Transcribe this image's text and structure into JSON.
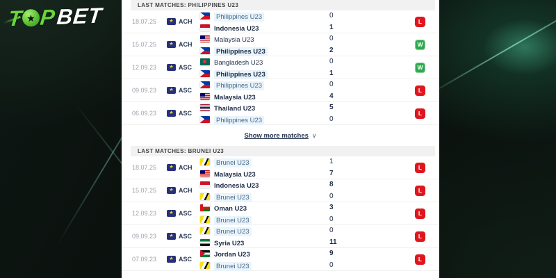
{
  "logo": {
    "t": "T",
    "star_glyph": "★",
    "p": "P",
    "bet": "BET"
  },
  "panel": {
    "sections": [
      {
        "header": "LAST MATCHES: PHILIPPINES U23",
        "show_more_label": "Show more matches",
        "chevron_glyph": "∨",
        "rows": [
          {
            "date": "18.07.25",
            "comp": "ACH",
            "comp_icon": "★",
            "home": {
              "name": "Philippines U23",
              "flag": "ph",
              "score": "0",
              "highlight": true,
              "bold": false
            },
            "away": {
              "name": "Indonesia U23",
              "flag": "id",
              "score": "1",
              "highlight": false,
              "bold": true
            },
            "result": "L"
          },
          {
            "date": "15.07.25",
            "comp": "ACH",
            "comp_icon": "★",
            "home": {
              "name": "Malaysia U23",
              "flag": "my",
              "score": "0",
              "highlight": false,
              "bold": false
            },
            "away": {
              "name": "Philippines U23",
              "flag": "ph",
              "score": "2",
              "highlight": true,
              "bold": true
            },
            "result": "W"
          },
          {
            "date": "12.09.23",
            "comp": "ASC",
            "comp_icon": "★",
            "home": {
              "name": "Bangladesh U23",
              "flag": "bd",
              "score": "0",
              "highlight": false,
              "bold": false
            },
            "away": {
              "name": "Philippines U23",
              "flag": "ph",
              "score": "1",
              "highlight": true,
              "bold": true
            },
            "result": "W"
          },
          {
            "date": "09.09.23",
            "comp": "ASC",
            "comp_icon": "★",
            "home": {
              "name": "Philippines U23",
              "flag": "ph",
              "score": "0",
              "highlight": true,
              "bold": false
            },
            "away": {
              "name": "Malaysia U23",
              "flag": "my",
              "score": "4",
              "highlight": false,
              "bold": true
            },
            "result": "L"
          },
          {
            "date": "06.09.23",
            "comp": "ASC",
            "comp_icon": "★",
            "home": {
              "name": "Thailand U23",
              "flag": "th",
              "score": "5",
              "highlight": false,
              "bold": true
            },
            "away": {
              "name": "Philippines U23",
              "flag": "ph",
              "score": "0",
              "highlight": true,
              "bold": false
            },
            "result": "L"
          }
        ]
      },
      {
        "header": "LAST MATCHES: BRUNEI U23",
        "rows": [
          {
            "date": "18.07.25",
            "comp": "ACH",
            "comp_icon": "★",
            "home": {
              "name": "Brunei U23",
              "flag": "bn",
              "score": "1",
              "highlight": true,
              "bold": false
            },
            "away": {
              "name": "Malaysia U23",
              "flag": "my",
              "score": "7",
              "highlight": false,
              "bold": true
            },
            "result": "L"
          },
          {
            "date": "15.07.25",
            "comp": "ACH",
            "comp_icon": "★",
            "home": {
              "name": "Indonesia U23",
              "flag": "id",
              "score": "8",
              "highlight": false,
              "bold": true
            },
            "away": {
              "name": "Brunei U23",
              "flag": "bn",
              "score": "0",
              "highlight": true,
              "bold": false
            },
            "result": "L"
          },
          {
            "date": "12.09.23",
            "comp": "ASC",
            "comp_icon": "★",
            "home": {
              "name": "Oman U23",
              "flag": "om",
              "score": "3",
              "highlight": false,
              "bold": true
            },
            "away": {
              "name": "Brunei U23",
              "flag": "bn",
              "score": "0",
              "highlight": true,
              "bold": false
            },
            "result": "L"
          },
          {
            "date": "09.09.23",
            "comp": "ASC",
            "comp_icon": "★",
            "home": {
              "name": "Brunei U23",
              "flag": "bn",
              "score": "0",
              "highlight": true,
              "bold": false
            },
            "away": {
              "name": "Syria U23",
              "flag": "sy",
              "score": "11",
              "highlight": false,
              "bold": true
            },
            "result": "L"
          },
          {
            "date": "07.09.23",
            "comp": "ASC",
            "comp_icon": "★",
            "home": {
              "name": "Jordan U23",
              "flag": "jo",
              "score": "9",
              "highlight": false,
              "bold": true
            },
            "away": {
              "name": "Brunei U23",
              "flag": "bn",
              "score": "0",
              "highlight": true,
              "bold": false
            },
            "result": "L"
          }
        ]
      }
    ]
  },
  "colors": {
    "win_badge": "#2fa94e",
    "loss_badge": "#e0161f",
    "brand_green": "#68d73c",
    "highlight_bg": "#e9f4fb",
    "header_bar_bg": "#f1f1f1"
  }
}
